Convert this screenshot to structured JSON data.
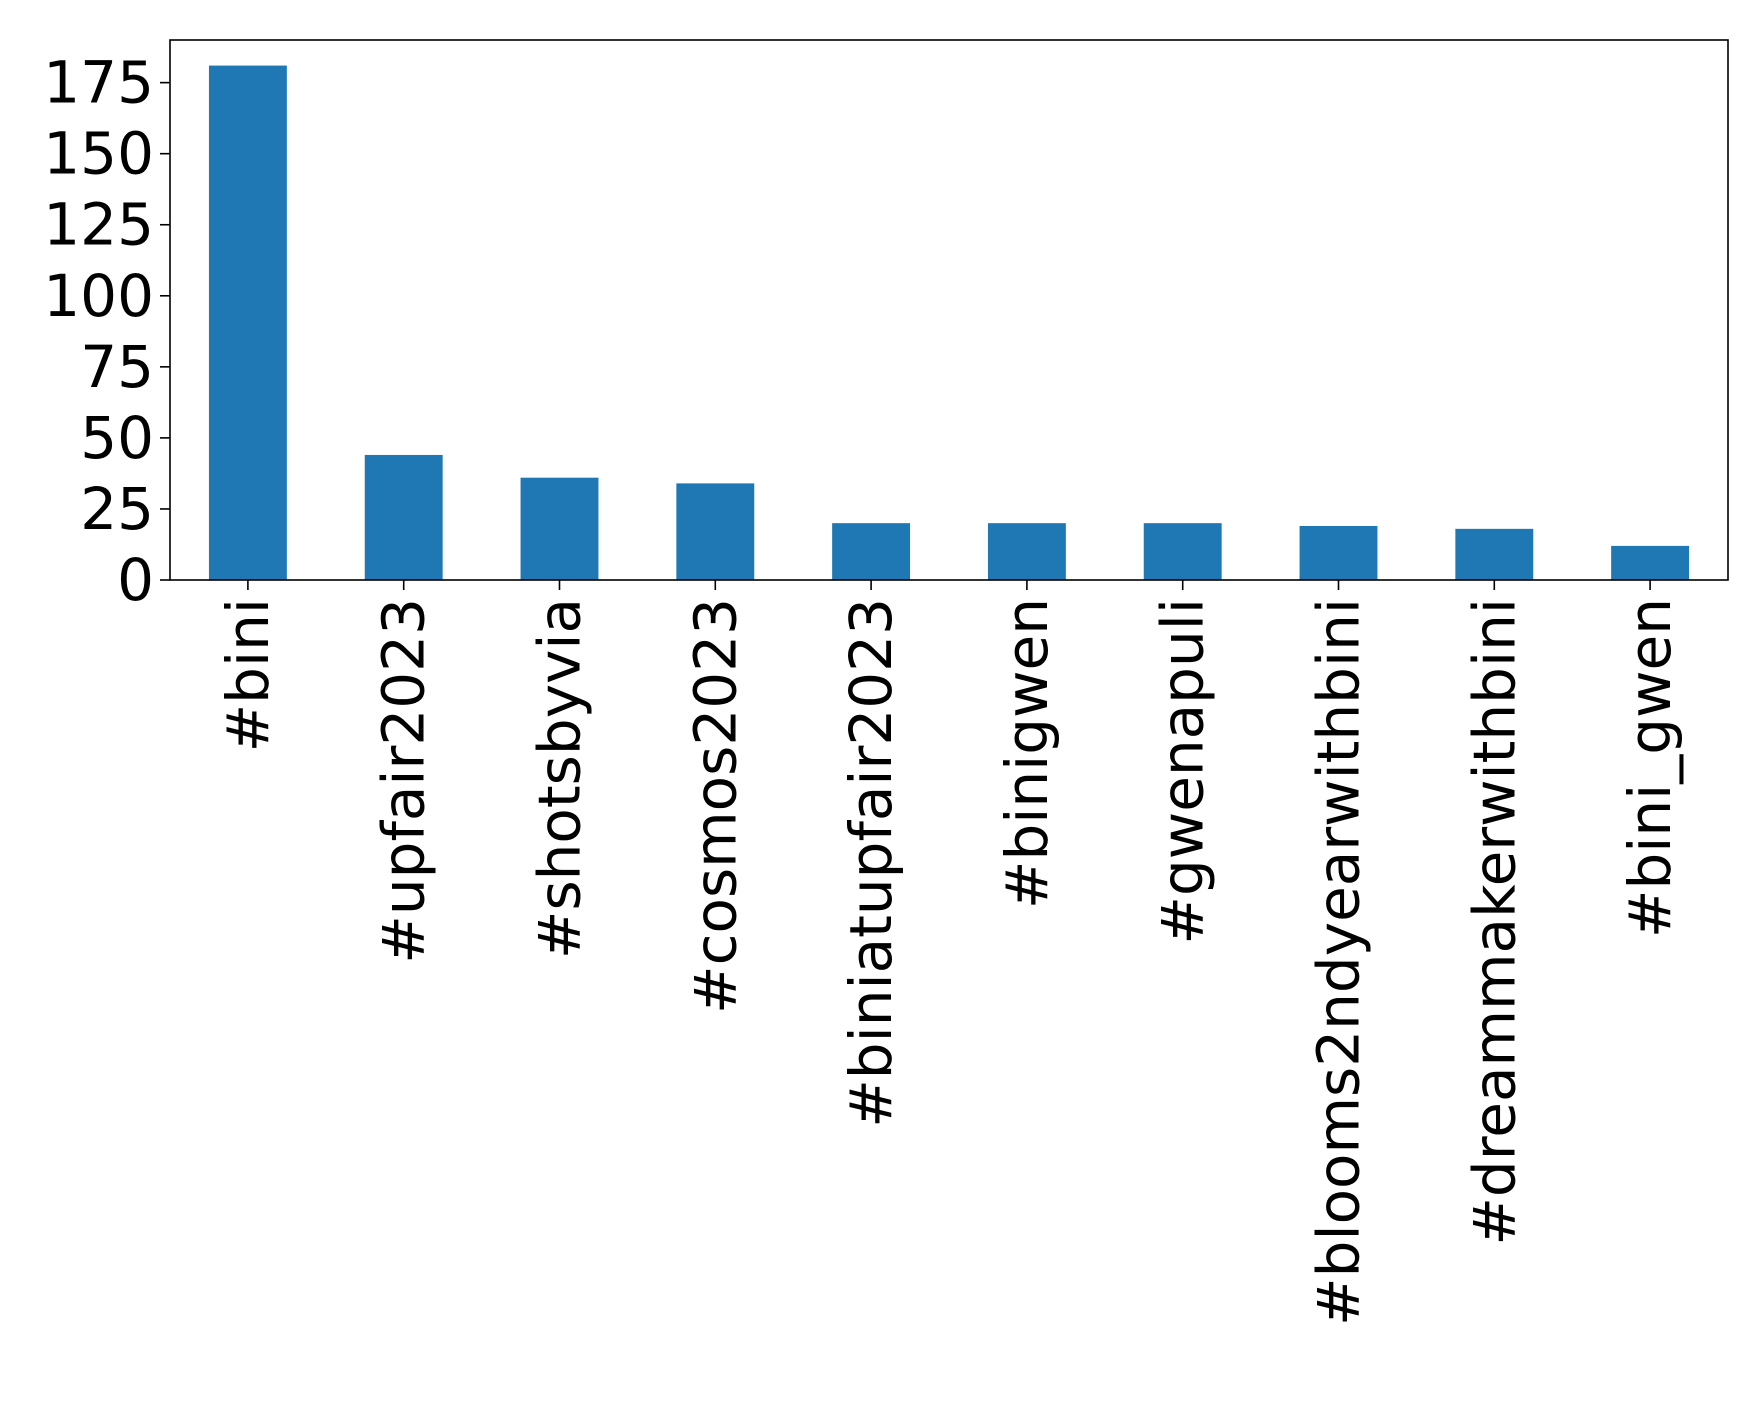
{
  "chart_data": {
    "type": "bar",
    "title": "",
    "xlabel": "",
    "ylabel": "",
    "categories": [
      "#bini",
      "#upfair2023",
      "#shotsbyvia",
      "#cosmos2023",
      "#biniatupfair2023",
      "#binigwen",
      "#gwenapuli",
      "#blooms2ndyearwithbini",
      "#dreammakerwithbini",
      "#bini_gwen"
    ],
    "values": [
      181,
      44,
      36,
      34,
      20,
      20,
      20,
      19,
      18,
      12
    ],
    "ylim": [
      0,
      190
    ],
    "yticks": [
      0,
      25,
      50,
      75,
      100,
      125,
      150,
      175
    ],
    "bar_color": "#1f77b4",
    "grid": false,
    "legend": "none"
  }
}
